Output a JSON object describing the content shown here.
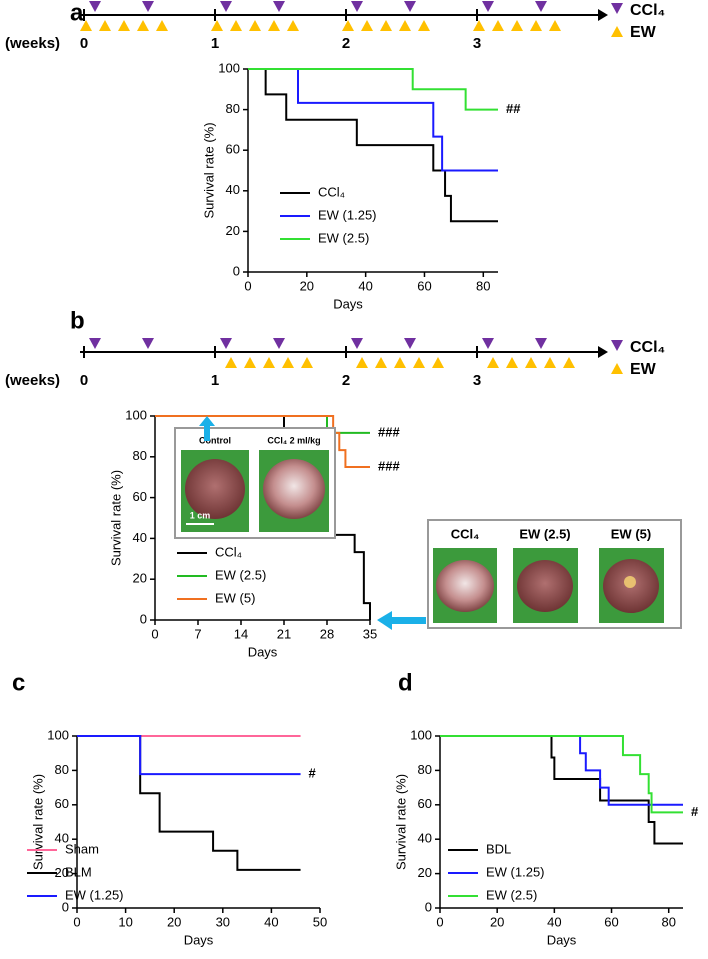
{
  "timelines": [
    {
      "weeks_label": "(weeks)",
      "weeks": [
        0,
        1,
        2,
        3
      ],
      "legend": [
        "CCl₄",
        "EW"
      ]
    },
    {
      "weeks_label": "(weeks)",
      "weeks": [
        0,
        1,
        2,
        3
      ],
      "legend": [
        "CCl₄",
        "EW"
      ]
    }
  ],
  "photos": {
    "inset_labels": [
      "Control",
      "CCl₄ 2 ml/kg"
    ],
    "scale_bar": "1 cm",
    "outcome_labels": [
      "CCl₄",
      "EW (2.5)",
      "EW (5)"
    ]
  },
  "chart_data": [
    {
      "type": "line",
      "drawstyle": "steps-post",
      "panel_label": "a",
      "xlabel": "Days",
      "ylabel": "Survival rate (%)",
      "xlim": [
        0,
        85
      ],
      "ylim": [
        0,
        100
      ],
      "xticks": [
        0,
        20,
        40,
        60,
        80
      ],
      "yticks": [
        0,
        20,
        40,
        60,
        80,
        100
      ],
      "series": [
        {
          "name": "CCl₄",
          "color": "#000000",
          "x": [
            0,
            6,
            13,
            37,
            63,
            67,
            69,
            85
          ],
          "values": [
            100,
            87.5,
            75,
            62.5,
            50,
            37.5,
            25,
            25
          ]
        },
        {
          "name": "EW (1.25)",
          "color": "#1a1aff",
          "x": [
            0,
            17,
            63,
            66,
            85
          ],
          "values": [
            100,
            83.3,
            66.7,
            50,
            50
          ]
        },
        {
          "name": "EW (2.5)",
          "color": "#33e033",
          "x": [
            0,
            56,
            74,
            85
          ],
          "values": [
            100,
            90,
            80,
            80
          ],
          "annotation": "##"
        }
      ]
    },
    {
      "type": "line",
      "drawstyle": "steps-post",
      "panel_label": "b",
      "xlabel": "Days",
      "ylabel": "Survival rate (%)",
      "xlim": [
        0,
        35
      ],
      "ylim": [
        0,
        100
      ],
      "xticks": [
        0,
        7,
        14,
        21,
        28,
        35
      ],
      "yticks": [
        0,
        20,
        40,
        60,
        80,
        100
      ],
      "series": [
        {
          "name": "CCl₄",
          "color": "#000000",
          "x": [
            0,
            21,
            27,
            29,
            31,
            32.5,
            34,
            35
          ],
          "values": [
            100,
            91.7,
            75,
            41.7,
            41.7,
            33.3,
            8.3,
            0
          ]
        },
        {
          "name": "EW (2.5)",
          "color": "#22bb22",
          "x": [
            0,
            28,
            35
          ],
          "values": [
            100,
            91.7,
            91.7
          ],
          "annotation": "###"
        },
        {
          "name": "EW (5)",
          "color": "#f07020",
          "x": [
            0,
            29,
            30,
            31,
            35
          ],
          "values": [
            100,
            91.7,
            83.3,
            75,
            75
          ],
          "annotation": "###"
        }
      ]
    },
    {
      "type": "line",
      "drawstyle": "steps-post",
      "panel_label": "c",
      "xlabel": "Days",
      "ylabel": "Survival rate (%)",
      "xlim": [
        0,
        50
      ],
      "ylim": [
        0,
        100
      ],
      "xticks": [
        0,
        10,
        20,
        30,
        40,
        50
      ],
      "yticks": [
        0,
        20,
        40,
        60,
        80,
        100
      ],
      "series": [
        {
          "name": "Sham",
          "color": "#ff6699",
          "x": [
            0,
            46
          ],
          "values": [
            100,
            100
          ]
        },
        {
          "name": "BLM",
          "color": "#000000",
          "x": [
            0,
            13,
            17,
            28,
            33,
            46
          ],
          "values": [
            100,
            66.7,
            44.4,
            33.3,
            22.2,
            22.2
          ]
        },
        {
          "name": "EW (1.25)",
          "color": "#1a1aff",
          "x": [
            0,
            13,
            46
          ],
          "values": [
            100,
            77.8,
            77.8
          ],
          "annotation": "#"
        }
      ]
    },
    {
      "type": "line",
      "drawstyle": "steps-post",
      "panel_label": "d",
      "xlabel": "Days",
      "ylabel": "Survival rate (%)",
      "xlim": [
        0,
        85
      ],
      "ylim": [
        0,
        100
      ],
      "xticks": [
        0,
        20,
        40,
        60,
        80
      ],
      "yticks": [
        0,
        20,
        40,
        60,
        80,
        100
      ],
      "series": [
        {
          "name": "BDL",
          "color": "#000000",
          "x": [
            0,
            39,
            40,
            56,
            73,
            75,
            85
          ],
          "values": [
            100,
            87.5,
            75,
            62.5,
            50,
            37.5,
            37.5
          ]
        },
        {
          "name": "EW (1.25)",
          "color": "#1a1aff",
          "x": [
            0,
            49,
            51,
            56,
            59,
            85
          ],
          "values": [
            100,
            90,
            80,
            70,
            60,
            60
          ]
        },
        {
          "name": "EW (2.5)",
          "color": "#33e033",
          "x": [
            0,
            64,
            70,
            73,
            74,
            85
          ],
          "values": [
            100,
            88.9,
            77.8,
            66.7,
            55.6,
            55.6
          ],
          "annotation": "#"
        }
      ]
    }
  ]
}
